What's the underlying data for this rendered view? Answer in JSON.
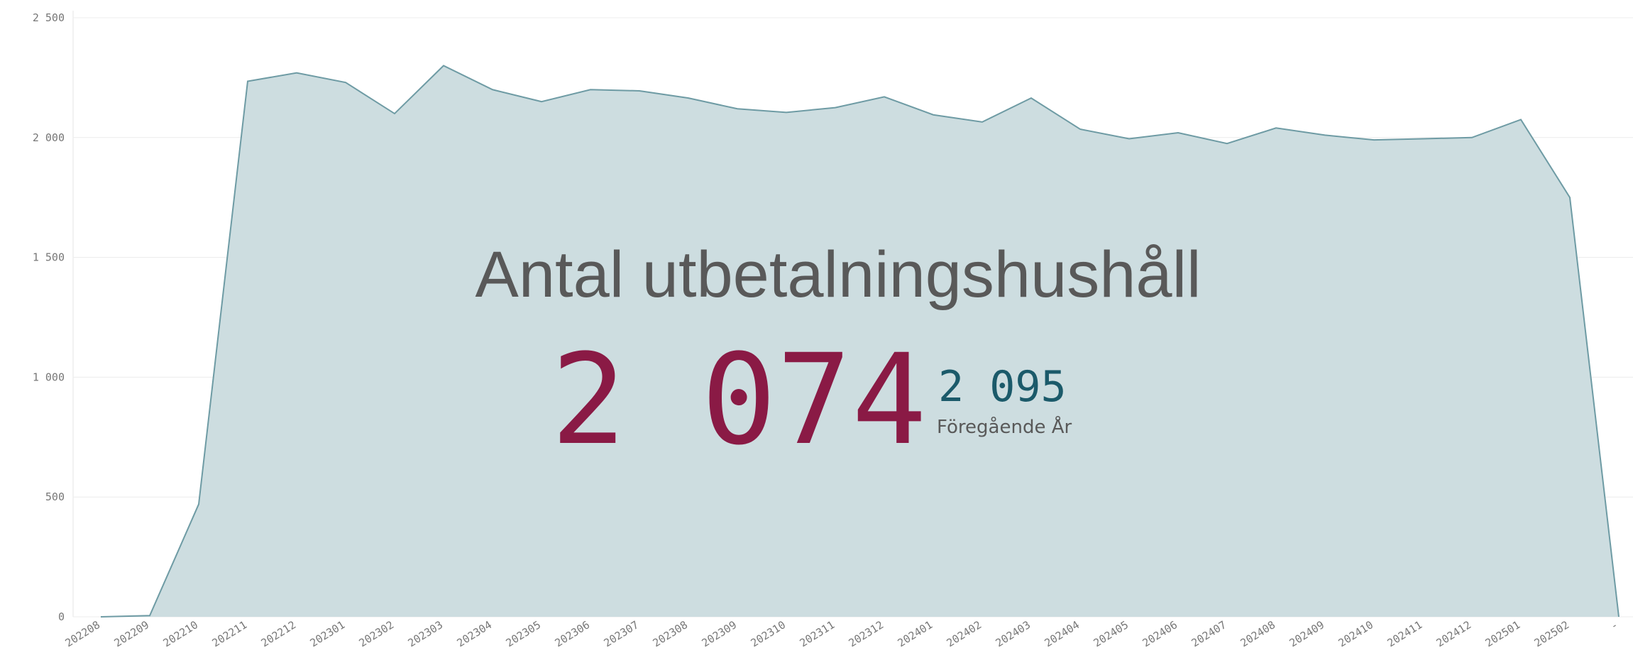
{
  "chart_data": {
    "type": "area",
    "categories": [
      "202208",
      "202209",
      "202210",
      "202211",
      "202212",
      "202301",
      "202302",
      "202303",
      "202304",
      "202305",
      "202306",
      "202307",
      "202308",
      "202309",
      "202310",
      "202311",
      "202312",
      "202401",
      "202402",
      "202403",
      "202404",
      "202405",
      "202406",
      "202407",
      "202408",
      "202409",
      "202410",
      "202411",
      "202412",
      "202501",
      "202502",
      "-"
    ],
    "values": [
      0,
      5,
      470,
      2235,
      2270,
      2230,
      2100,
      2300,
      2200,
      2150,
      2200,
      2195,
      2165,
      2120,
      2105,
      2125,
      2170,
      2095,
      2065,
      2165,
      2035,
      1995,
      2020,
      1975,
      2040,
      2010,
      1990,
      1995,
      2000,
      2075,
      1750,
      0
    ],
    "color": "#6e9ba4",
    "fill": "#cddde0",
    "ylim": [
      0,
      2500
    ],
    "yticks": [
      0,
      500,
      {
        "value": 1000,
        "label": "1 000"
      },
      {
        "value": 1500,
        "label": "1 500"
      },
      {
        "value": 2000,
        "label": "2 000"
      },
      {
        "value": 2500,
        "label": "2 500"
      }
    ],
    "grid": true
  },
  "kpi": {
    "title": "Antal utbetalningshushåll",
    "value": "2 074",
    "comparison": "2 095",
    "comparison_label": "Föregående År"
  }
}
